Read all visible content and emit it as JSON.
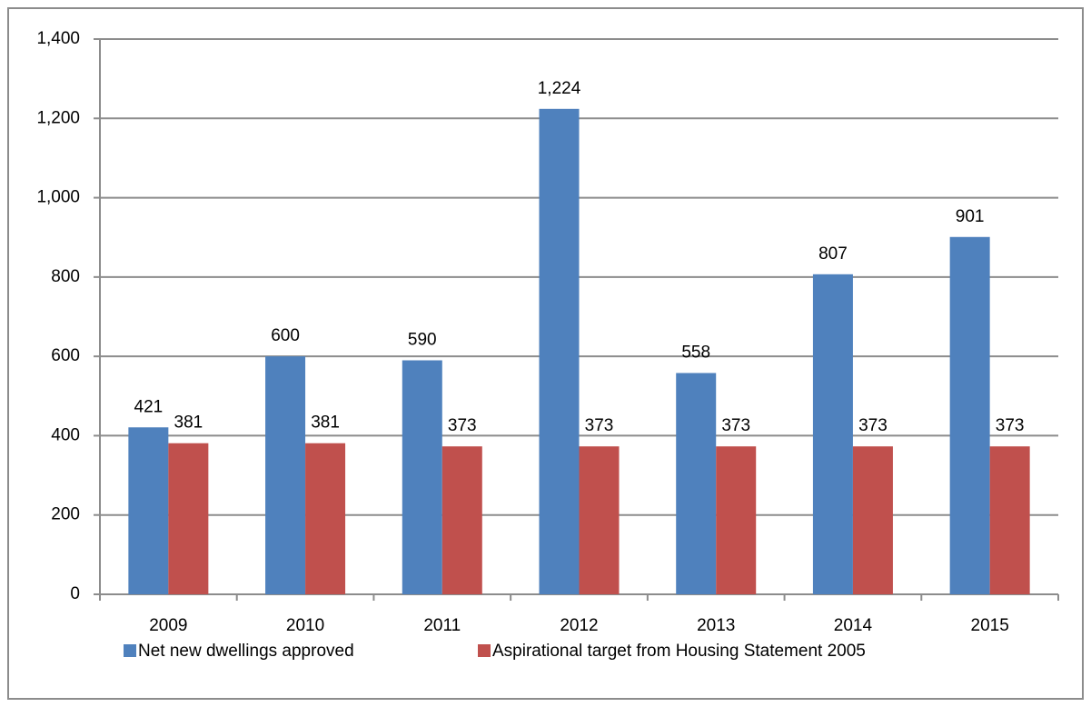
{
  "chart_data": {
    "type": "bar",
    "categories": [
      "2009",
      "2010",
      "2011",
      "2012",
      "2013",
      "2014",
      "2015"
    ],
    "series": [
      {
        "name": "Net new dwellings approved",
        "color": "#4f81bd",
        "values": [
          421,
          600,
          590,
          1224,
          558,
          807,
          901
        ],
        "value_labels": [
          "421",
          "600",
          "590",
          "1,224",
          "558",
          "807",
          "901"
        ]
      },
      {
        "name": "Aspirational target from Housing Statement 2005",
        "color": "#c0504d",
        "values": [
          381,
          381,
          373,
          373,
          373,
          373,
          373
        ]
      }
    ],
    "ylim": [
      0,
      1400
    ],
    "yticks": [
      0,
      200,
      400,
      600,
      800,
      {
        "value": 1000,
        "label": "1,000"
      },
      {
        "value": 1200,
        "label": "1,200"
      },
      {
        "value": 1400,
        "label": "1,400"
      }
    ],
    "grid": true,
    "legend": "bottom"
  }
}
